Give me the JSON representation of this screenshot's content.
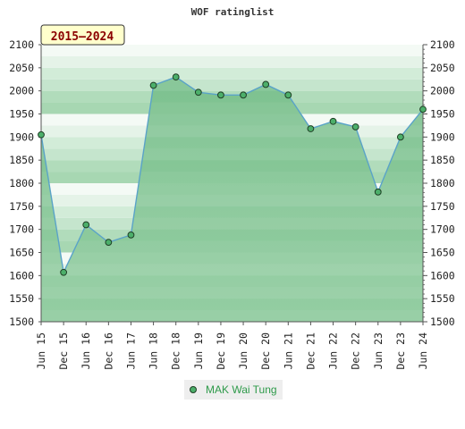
{
  "chart_data": {
    "type": "area",
    "title": "WOF ratinglist",
    "badge": "2015–2024",
    "categories": [
      "Jun 15",
      "Dec 15",
      "Jun 16",
      "Dec 16",
      "Jun 17",
      "Jun 18",
      "Dec 18",
      "Jun 19",
      "Dec 19",
      "Jun 20",
      "Dec 20",
      "Jun 21",
      "Dec 21",
      "Jun 22",
      "Dec 22",
      "Jun 23",
      "Dec 23",
      "Jun 24"
    ],
    "series": [
      {
        "name": "MAK Wai Tung",
        "values": [
          1905,
          1607,
          1710,
          1672,
          1688,
          2012,
          2030,
          1997,
          1991,
          1991,
          2014,
          1991,
          1918,
          1934,
          1922,
          1781,
          1900,
          1960
        ]
      }
    ],
    "ylim": [
      1500,
      2100
    ],
    "yticks": [
      1500,
      1550,
      1600,
      1650,
      1700,
      1750,
      1800,
      1850,
      1900,
      1950,
      2000,
      2050,
      2100
    ],
    "xlabel": "",
    "ylabel": "",
    "grid": true,
    "legend_position": "bottom-center",
    "colors": {
      "line": "#5aa3c8",
      "marker": "#4caf6a",
      "fill": "#79c08e",
      "badge_bg": "#ffffcc",
      "legend_text": "#2e9a4a"
    }
  }
}
